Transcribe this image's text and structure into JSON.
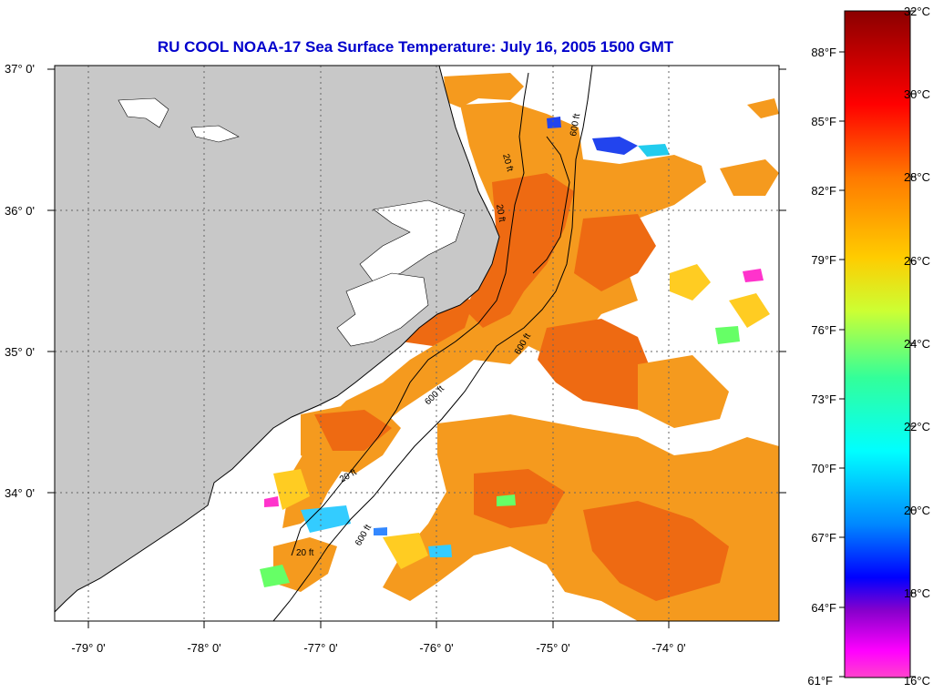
{
  "title": "RU COOL  NOAA-17  Sea Surface Temperature:  July 16, 2005 1500 GMT",
  "map": {
    "lat_labels": [
      "37° 0'",
      "36° 0'",
      "35° 0'",
      "34° 0'"
    ],
    "lon_labels": [
      "-79° 0'",
      "-78° 0'",
      "-77° 0'",
      "-76° 0'",
      "-75° 0'",
      "-74° 0'"
    ],
    "contour_labels": [
      "20 ft",
      "600 ft",
      "20 ft",
      "600 ft",
      "600 ft",
      "20 ft",
      "600 ft",
      "20 ft"
    ],
    "colors": {
      "land": "#c8c8c8",
      "ocean_no_data": "#ffffff",
      "sst_dominant": "#f59a1e",
      "sst_warm": "#ee6a12",
      "sst_cool": "#ffcc22"
    }
  },
  "colorbar": {
    "fahrenheit_labels": [
      "88°F",
      "85°F",
      "82°F",
      "79°F",
      "76°F",
      "73°F",
      "70°F",
      "67°F",
      "64°F",
      "61°F"
    ],
    "celsius_labels": [
      "32°C",
      "30°C",
      "28°C",
      "26°C",
      "24°C",
      "22°C",
      "20°C",
      "18°C",
      "16°C"
    ],
    "gradient": [
      "#8b0000",
      "#ff0000",
      "#ff7a00",
      "#ffcc00",
      "#ccff33",
      "#33ff99",
      "#00ffff",
      "#0088ff",
      "#0000ff",
      "#8800cc",
      "#ff00ff",
      "#ff44cc"
    ]
  }
}
